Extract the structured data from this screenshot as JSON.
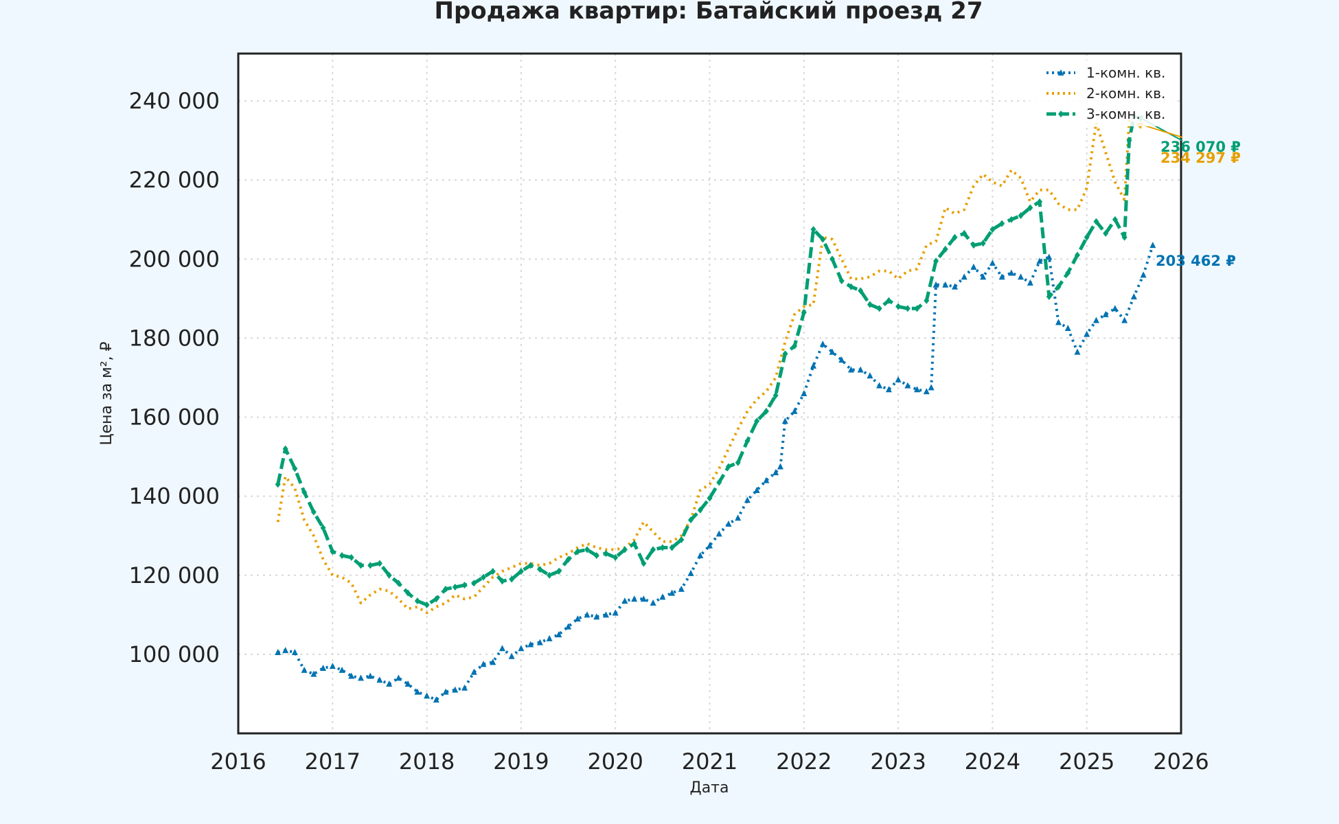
{
  "chart_data": {
    "type": "line",
    "title": "Продажа квартир: Батайский проезд 27",
    "xlabel": "Дата",
    "ylabel": "Цена за м², ₽",
    "xlim": [
      2016,
      2026
    ],
    "ylim": [
      80000,
      252000
    ],
    "x_ticks": [
      "2016",
      "2017",
      "2018",
      "2019",
      "2020",
      "2021",
      "2022",
      "2023",
      "2024",
      "2025",
      "2026"
    ],
    "y_ticks": [
      "100 000",
      "120 000",
      "140 000",
      "160 000",
      "180 000",
      "200 000",
      "220 000",
      "240 000"
    ],
    "grid": true,
    "legend_position": "top-right",
    "series": [
      {
        "name": "1-комн. кв.",
        "color": "#0072b2",
        "style": "dotted",
        "marker": "triangle",
        "x": [
          2016.42,
          2016.5,
          2016.6,
          2016.7,
          2016.8,
          2016.9,
          2017.0,
          2017.1,
          2017.2,
          2017.3,
          2017.4,
          2017.5,
          2017.6,
          2017.7,
          2017.8,
          2017.9,
          2018.0,
          2018.1,
          2018.2,
          2018.3,
          2018.4,
          2018.5,
          2018.6,
          2018.7,
          2018.8,
          2018.9,
          2019.0,
          2019.1,
          2019.2,
          2019.3,
          2019.4,
          2019.5,
          2019.6,
          2019.7,
          2019.8,
          2019.9,
          2020.0,
          2020.1,
          2020.2,
          2020.3,
          2020.4,
          2020.5,
          2020.6,
          2020.7,
          2020.8,
          2020.9,
          2021.0,
          2021.1,
          2021.2,
          2021.3,
          2021.4,
          2021.5,
          2021.6,
          2021.7,
          2021.75,
          2021.8,
          2021.9,
          2022.0,
          2022.1,
          2022.2,
          2022.3,
          2022.4,
          2022.5,
          2022.6,
          2022.7,
          2022.8,
          2022.9,
          2023.0,
          2023.1,
          2023.2,
          2023.3,
          2023.35,
          2023.4,
          2023.5,
          2023.6,
          2023.7,
          2023.8,
          2023.9,
          2024.0,
          2024.1,
          2024.2,
          2024.3,
          2024.4,
          2024.5,
          2024.6,
          2024.7,
          2024.8,
          2024.9,
          2025.0,
          2025.1,
          2025.2,
          2025.3,
          2025.4,
          2025.5,
          2025.6,
          2025.7
        ],
        "y": [
          100500,
          101000,
          100500,
          96000,
          95000,
          96500,
          97000,
          96000,
          94500,
          94000,
          94500,
          93500,
          92500,
          94000,
          92500,
          90500,
          89500,
          88500,
          90500,
          91000,
          91500,
          95500,
          97500,
          98000,
          101500,
          99500,
          101500,
          102500,
          103000,
          104000,
          105000,
          107000,
          109000,
          110000,
          109500,
          110000,
          110500,
          113500,
          114000,
          114000,
          113000,
          114500,
          115500,
          116500,
          120500,
          125000,
          127500,
          130500,
          133000,
          134500,
          139000,
          141500,
          144000,
          146000,
          147500,
          159000,
          161500,
          166000,
          173000,
          178500,
          176500,
          174500,
          172000,
          172000,
          170500,
          168000,
          167000,
          169500,
          168000,
          167000,
          166500,
          167500,
          193500,
          193500,
          193000,
          195500,
          198000,
          195500,
          199000,
          195500,
          196500,
          195500,
          194000,
          199500,
          200500,
          184000,
          182500,
          176500,
          181000,
          184500,
          186000,
          187500,
          184500,
          190500,
          196000,
          203500
        ]
      },
      {
        "name": "2-комн. кв.",
        "color": "#e69f00",
        "style": "dotted",
        "marker": "none",
        "x": [
          2016.42,
          2016.5,
          2016.6,
          2016.7,
          2016.8,
          2016.9,
          2017.0,
          2017.1,
          2017.2,
          2017.3,
          2017.4,
          2017.5,
          2017.6,
          2017.7,
          2017.8,
          2017.9,
          2018.0,
          2018.1,
          2018.2,
          2018.3,
          2018.4,
          2018.5,
          2018.6,
          2018.7,
          2018.8,
          2018.9,
          2019.0,
          2019.1,
          2019.2,
          2019.3,
          2019.4,
          2019.5,
          2019.6,
          2019.7,
          2019.8,
          2019.9,
          2020.0,
          2020.1,
          2020.2,
          2020.3,
          2020.4,
          2020.5,
          2020.6,
          2020.7,
          2020.8,
          2020.9,
          2021.0,
          2021.1,
          2021.2,
          2021.3,
          2021.4,
          2021.5,
          2021.6,
          2021.7,
          2021.8,
          2021.9,
          2022.0,
          2022.1,
          2022.2,
          2022.3,
          2022.4,
          2022.5,
          2022.6,
          2022.7,
          2022.8,
          2022.9,
          2023.0,
          2023.1,
          2023.2,
          2023.3,
          2023.4,
          2023.5,
          2023.6,
          2023.7,
          2023.8,
          2023.9,
          2024.0,
          2024.1,
          2024.2,
          2024.3,
          2024.4,
          2024.5,
          2024.6,
          2024.7,
          2024.8,
          2024.9,
          2025.0,
          2025.1,
          2025.2,
          2025.3,
          2025.4,
          2025.45,
          2025.5
        ],
        "y": [
          133500,
          145000,
          142000,
          134000,
          130000,
          124000,
          120000,
          119500,
          118000,
          113000,
          115000,
          116500,
          116000,
          114000,
          111500,
          112000,
          110500,
          112000,
          113000,
          115000,
          114000,
          114500,
          117000,
          119500,
          121000,
          122000,
          123000,
          123000,
          122500,
          123000,
          124500,
          125500,
          127000,
          128000,
          127000,
          126500,
          126500,
          127000,
          129000,
          133500,
          131000,
          128500,
          128500,
          130000,
          134000,
          141500,
          143000,
          147000,
          152000,
          157000,
          161500,
          164500,
          166500,
          170000,
          179000,
          186000,
          188000,
          188500,
          205500,
          205000,
          200000,
          195000,
          195000,
          195500,
          197000,
          197000,
          195000,
          197000,
          197500,
          203500,
          204500,
          213000,
          211500,
          212500,
          218500,
          221500,
          219500,
          218500,
          222500,
          220500,
          214500,
          217500,
          217500,
          214000,
          212500,
          212500,
          218000,
          234500,
          227000,
          219500,
          215000,
          235000,
          234297
        ]
      },
      {
        "name": "3-комн. кв.",
        "color": "#009e73",
        "style": "dashed",
        "marker": "diamond",
        "x": [
          2016.42,
          2016.5,
          2016.6,
          2016.7,
          2016.8,
          2016.9,
          2017.0,
          2017.1,
          2017.2,
          2017.3,
          2017.4,
          2017.5,
          2017.6,
          2017.7,
          2017.8,
          2017.9,
          2018.0,
          2018.1,
          2018.2,
          2018.3,
          2018.4,
          2018.5,
          2018.6,
          2018.7,
          2018.8,
          2018.9,
          2019.0,
          2019.1,
          2019.2,
          2019.3,
          2019.4,
          2019.5,
          2019.6,
          2019.7,
          2019.8,
          2019.9,
          2020.0,
          2020.1,
          2020.2,
          2020.3,
          2020.4,
          2020.5,
          2020.6,
          2020.7,
          2020.8,
          2020.9,
          2021.0,
          2021.1,
          2021.2,
          2021.3,
          2021.4,
          2021.5,
          2021.6,
          2021.7,
          2021.8,
          2021.9,
          2022.0,
          2022.1,
          2022.2,
          2022.3,
          2022.4,
          2022.5,
          2022.6,
          2022.7,
          2022.8,
          2022.9,
          2023.0,
          2023.1,
          2023.2,
          2023.3,
          2023.4,
          2023.5,
          2023.6,
          2023.7,
          2023.8,
          2023.9,
          2024.0,
          2024.1,
          2024.2,
          2024.3,
          2024.4,
          2024.5,
          2024.6,
          2024.7,
          2024.8,
          2024.9,
          2025.0,
          2025.1,
          2025.2,
          2025.3,
          2025.4,
          2025.45,
          2025.5
        ],
        "y": [
          143000,
          152000,
          147000,
          141000,
          136000,
          132000,
          126000,
          125000,
          124500,
          122500,
          122500,
          123000,
          120000,
          118000,
          115500,
          113500,
          112500,
          114000,
          116500,
          117000,
          117500,
          118000,
          119500,
          121000,
          118500,
          119000,
          121000,
          122500,
          121500,
          120000,
          121000,
          124000,
          126000,
          126500,
          125000,
          125500,
          124500,
          126500,
          128000,
          123000,
          126500,
          127000,
          127000,
          129000,
          134000,
          136500,
          139500,
          143500,
          147500,
          148500,
          154000,
          159000,
          161500,
          165500,
          176000,
          178000,
          186500,
          207500,
          205000,
          200000,
          194500,
          193000,
          192000,
          188500,
          187500,
          189500,
          188000,
          187500,
          187500,
          189500,
          199500,
          202500,
          205500,
          206500,
          203500,
          204000,
          207500,
          209000,
          210000,
          211000,
          213000,
          214500,
          190500,
          193000,
          196500,
          201000,
          205500,
          209500,
          206500,
          210000,
          205500,
          230000,
          236070
        ]
      }
    ],
    "annotations": [
      {
        "text": "236 070 ₽",
        "series": "3-комн. кв.",
        "x": 2025.5,
        "y": 236070,
        "color": "#009e73"
      },
      {
        "text": "234 297 ₽",
        "series": "2-комн. кв.",
        "x": 2025.5,
        "y": 234297,
        "color": "#e69f00"
      },
      {
        "text": "203 462 ₽",
        "series": "1-комн. кв.",
        "x": 2025.7,
        "y": 203462,
        "color": "#0072b2"
      }
    ]
  }
}
